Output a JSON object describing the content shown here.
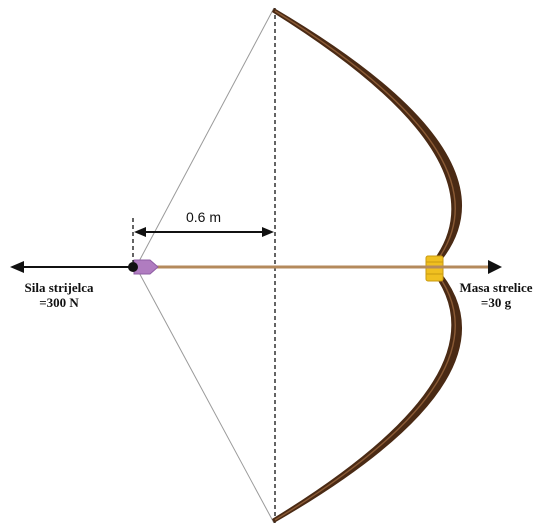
{
  "diagram": {
    "distance_label": "0.6 m",
    "force_label_line1": "Sila strijelca",
    "force_label_line2": "=300 N",
    "mass_label_line1": "Masa strelice",
    "mass_label_line2": "=30 g"
  },
  "colors": {
    "bow_outer": "#4a2a14",
    "bow_inner": "#8a5a35",
    "arrow_shaft": "#b48a5c",
    "fletching": "#b07cc0",
    "grip": "#f0c020",
    "string": "#9a9a9a",
    "ink": "#111111"
  },
  "icons": {
    "left_arrowhead": "arrow-left-icon",
    "right_arrowhead": "arrow-right-icon",
    "nock_point": "dot-icon"
  }
}
